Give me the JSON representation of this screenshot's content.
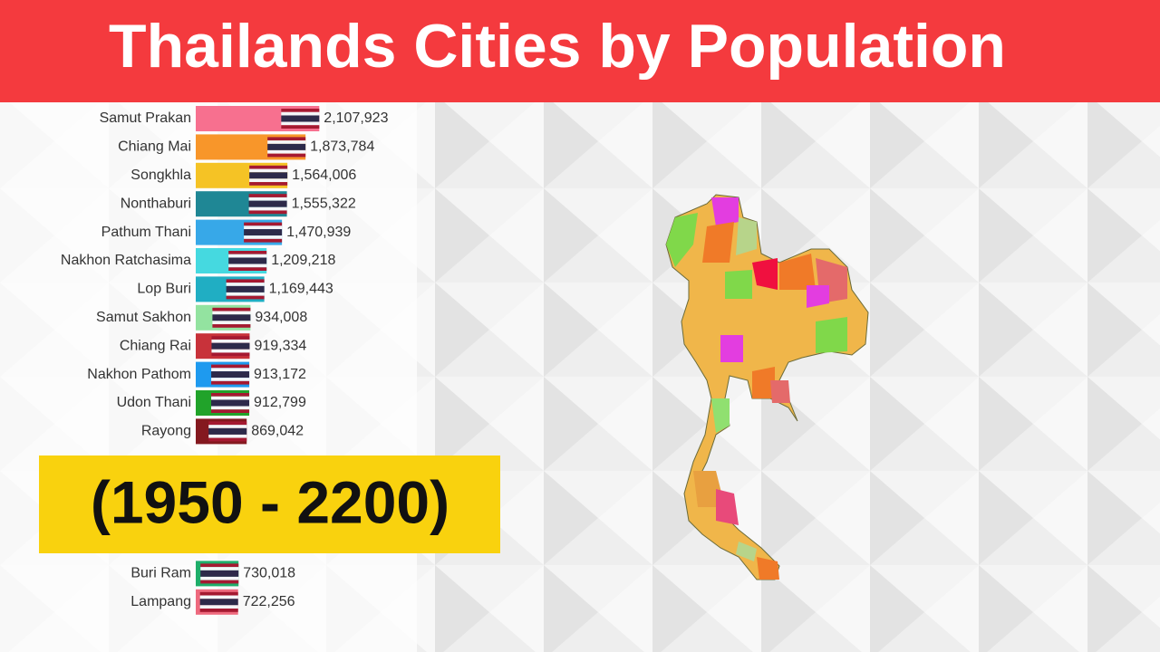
{
  "chart_data": {
    "type": "bar",
    "orientation": "horizontal",
    "title": "Thailands Cities by Population",
    "subtitle": "(1950 - 2200)",
    "categories": [
      "Samut Prakan",
      "Chiang Mai",
      "Songkhla",
      "Nonthaburi",
      "Pathum Thani",
      "Nakhon Ratchasima",
      "Lop Buri",
      "Samut Sakhon",
      "Chiang Rai",
      "Nakhon Pathom",
      "Udon Thani",
      "Rayong",
      "Buri Ram",
      "Lampang"
    ],
    "values": [
      2107923,
      1873784,
      1564006,
      1555322,
      1470939,
      1209218,
      1169443,
      934008,
      919334,
      913172,
      912799,
      869042,
      730018,
      722256
    ],
    "value_labels": [
      "2,107,923",
      "1,873,784",
      "1,564,006",
      "1,555,322",
      "1,470,939",
      "1,209,218",
      "1,169,443",
      "934,008",
      "919,334",
      "913,172",
      "912,799",
      "869,042",
      "730,018",
      "722,256"
    ],
    "colors": [
      "#f7708f",
      "#f8962a",
      "#f5c325",
      "#1f8795",
      "#37a8e8",
      "#45d9e0",
      "#20aec3",
      "#93e3a0",
      "#c8323a",
      "#1e9aef",
      "#21a32a",
      "#84191f",
      "#1fae6a",
      "#ee6a7e"
    ],
    "xlim": [
      0,
      3000000
    ]
  }
}
